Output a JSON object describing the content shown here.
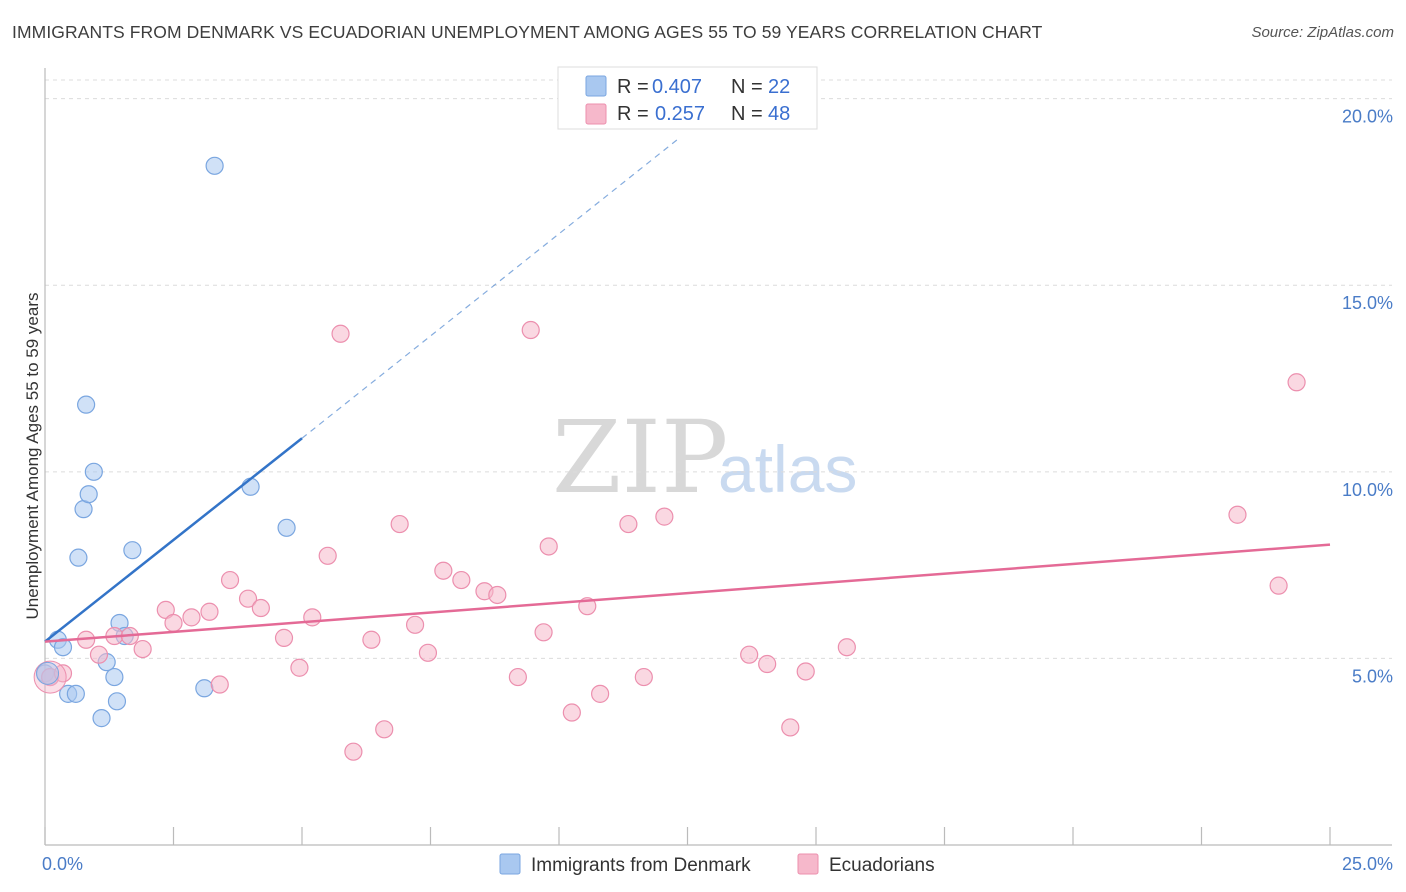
{
  "header": {
    "title": "IMMIGRANTS FROM DENMARK VS ECUADORIAN UNEMPLOYMENT AMONG AGES 55 TO 59 YEARS CORRELATION CHART",
    "source": "Source: ZipAtlas.com"
  },
  "watermark": {
    "zip": "ZIP",
    "atlas": "atlas"
  },
  "legend": {
    "rows": [
      {
        "r_label": "R =",
        "r_value": "0.407",
        "n_label": "N =",
        "n_value": "22",
        "color": "#a9c8f0"
      },
      {
        "r_label": "R =",
        "r_value": "0.257",
        "n_label": "N =",
        "n_value": "48",
        "color": "#f6b8cb"
      }
    ]
  },
  "bottom_legend": {
    "items": [
      {
        "label": "Immigrants from Denmark",
        "color": "#a9c8f0"
      },
      {
        "label": "Ecuadorians",
        "color": "#f6b8cb"
      }
    ]
  },
  "chart_data": {
    "type": "scatter",
    "title": "IMMIGRANTS FROM DENMARK VS ECUADORIAN UNEMPLOYMENT AMONG AGES 55 TO 59 YEARS CORRELATION CHART",
    "xlabel": "",
    "ylabel": "Unemployment Among Ages 55 to 59 years",
    "xlim": [
      0,
      25
    ],
    "ylim": [
      0,
      20.5
    ],
    "x_tick_labels": [
      "0.0%",
      "25.0%"
    ],
    "y_ticks": [
      5,
      10,
      15,
      20
    ],
    "y_tick_labels": [
      "5.0%",
      "10.0%",
      "15.0%",
      "20.0%"
    ],
    "grid": true,
    "series": [
      {
        "name": "Immigrants from Denmark",
        "color": "#a9c8f0",
        "stroke": "#7aa6e0",
        "line_color": "#3374c8",
        "R": 0.407,
        "N": 22,
        "trend": {
          "x0": 0.0,
          "y0": 5.45,
          "x1": 5.0,
          "y1": 10.9,
          "dash_to_x": 12.3,
          "dash_to_y": 18.9
        },
        "points": [
          [
            0.0,
            4.6
          ],
          [
            0.1,
            4.5
          ],
          [
            0.25,
            5.5
          ],
          [
            0.35,
            5.3
          ],
          [
            0.45,
            4.05
          ],
          [
            0.6,
            4.05
          ],
          [
            0.65,
            7.7
          ],
          [
            0.75,
            9.0
          ],
          [
            0.8,
            11.8
          ],
          [
            0.85,
            9.4
          ],
          [
            0.95,
            10.0
          ],
          [
            1.1,
            3.4
          ],
          [
            1.2,
            4.9
          ],
          [
            1.35,
            4.5
          ],
          [
            1.4,
            3.85
          ],
          [
            1.45,
            5.95
          ],
          [
            1.55,
            5.6
          ],
          [
            1.7,
            7.9
          ],
          [
            3.1,
            4.2
          ],
          [
            3.3,
            18.2
          ],
          [
            4.0,
            9.6
          ],
          [
            4.7,
            8.5
          ]
        ]
      },
      {
        "name": "Ecuadorians",
        "color": "#f6b8cb",
        "stroke": "#ec8fae",
        "line_color": "#e46a96",
        "R": 0.257,
        "N": 48,
        "trend": {
          "x0": 0.0,
          "y0": 5.45,
          "x1": 25.0,
          "y1": 8.05
        },
        "points": [
          [
            0.1,
            4.5
          ],
          [
            0.35,
            4.6
          ],
          [
            0.8,
            5.5
          ],
          [
            1.05,
            5.1
          ],
          [
            1.35,
            5.6
          ],
          [
            1.65,
            5.6
          ],
          [
            1.9,
            5.25
          ],
          [
            2.35,
            6.3
          ],
          [
            2.5,
            5.95
          ],
          [
            2.85,
            6.1
          ],
          [
            3.2,
            6.25
          ],
          [
            3.4,
            4.3
          ],
          [
            3.6,
            7.1
          ],
          [
            3.95,
            6.6
          ],
          [
            4.2,
            6.35
          ],
          [
            4.65,
            5.55
          ],
          [
            4.95,
            4.75
          ],
          [
            5.2,
            6.1
          ],
          [
            5.5,
            7.75
          ],
          [
            5.75,
            13.7
          ],
          [
            6.0,
            2.5
          ],
          [
            6.35,
            5.5
          ],
          [
            6.6,
            3.1
          ],
          [
            6.9,
            8.6
          ],
          [
            7.2,
            5.9
          ],
          [
            7.45,
            5.15
          ],
          [
            7.75,
            7.35
          ],
          [
            8.1,
            7.1
          ],
          [
            8.55,
            6.8
          ],
          [
            8.8,
            6.7
          ],
          [
            9.2,
            4.5
          ],
          [
            9.45,
            13.8
          ],
          [
            9.7,
            5.7
          ],
          [
            9.8,
            8.0
          ],
          [
            10.25,
            3.55
          ],
          [
            10.55,
            6.4
          ],
          [
            10.8,
            4.05
          ],
          [
            11.35,
            8.6
          ],
          [
            11.65,
            4.5
          ],
          [
            12.05,
            8.8
          ],
          [
            13.7,
            5.1
          ],
          [
            14.05,
            4.85
          ],
          [
            14.5,
            3.15
          ],
          [
            14.8,
            4.65
          ],
          [
            15.6,
            5.3
          ],
          [
            23.2,
            8.85
          ],
          [
            24.0,
            6.95
          ],
          [
            24.35,
            12.4
          ]
        ]
      }
    ]
  }
}
